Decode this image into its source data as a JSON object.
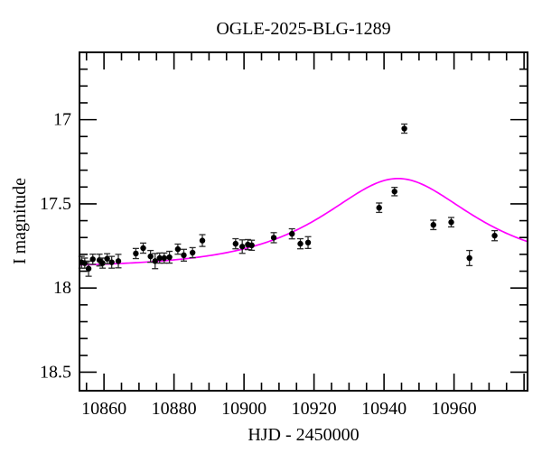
{
  "chart_data": {
    "type": "scatter",
    "title": "OGLE-2025-BLG-1289",
    "xlabel": "HJD - 2450000",
    "ylabel": "I magnitude",
    "x_range": [
      10853,
      10981
    ],
    "y_range_mag": [
      16.6,
      18.61
    ],
    "y_axis_inverted": true,
    "grid": false,
    "legend": false,
    "x_major_ticks": [
      10860,
      10880,
      10900,
      10920,
      10940,
      10960
    ],
    "x_minor_step": 5,
    "y_major_ticks": [
      17,
      17.5,
      18,
      18.5
    ],
    "y_minor_step": 0.1,
    "colors": {
      "model_curve": "#ff00ff",
      "data_points": "#000000",
      "error_bars": "#2b2b2b",
      "frame": "#000000",
      "background": "#ffffff"
    },
    "model_curve": {
      "type": "paczynski_microlensing",
      "t0": 10944.0,
      "tE": 30.5,
      "u0": 0.73,
      "baseline_mag": 17.88,
      "peak_mag": 17.35
    },
    "points": [
      {
        "t": 10853.6,
        "mag": 17.847,
        "err": 0.035
      },
      {
        "t": 10854.5,
        "mag": 17.852,
        "err": 0.03
      },
      {
        "t": 10855.6,
        "mag": 17.885,
        "err": 0.045
      },
      {
        "t": 10856.8,
        "mag": 17.829,
        "err": 0.03
      },
      {
        "t": 10858.7,
        "mag": 17.834,
        "err": 0.035
      },
      {
        "t": 10859.6,
        "mag": 17.852,
        "err": 0.03
      },
      {
        "t": 10860.9,
        "mag": 17.826,
        "err": 0.03
      },
      {
        "t": 10862.2,
        "mag": 17.847,
        "err": 0.035
      },
      {
        "t": 10864.1,
        "mag": 17.84,
        "err": 0.04
      },
      {
        "t": 10869.1,
        "mag": 17.795,
        "err": 0.03
      },
      {
        "t": 10871.2,
        "mag": 17.763,
        "err": 0.03
      },
      {
        "t": 10873.3,
        "mag": 17.812,
        "err": 0.035
      },
      {
        "t": 10874.6,
        "mag": 17.84,
        "err": 0.045
      },
      {
        "t": 10875.9,
        "mag": 17.822,
        "err": 0.03
      },
      {
        "t": 10877.2,
        "mag": 17.822,
        "err": 0.03
      },
      {
        "t": 10878.7,
        "mag": 17.817,
        "err": 0.035
      },
      {
        "t": 10881.1,
        "mag": 17.769,
        "err": 0.03
      },
      {
        "t": 10882.8,
        "mag": 17.805,
        "err": 0.035
      },
      {
        "t": 10885.3,
        "mag": 17.79,
        "err": 0.03
      },
      {
        "t": 10888.1,
        "mag": 17.718,
        "err": 0.035
      },
      {
        "t": 10897.6,
        "mag": 17.737,
        "err": 0.03
      },
      {
        "t": 10899.5,
        "mag": 17.754,
        "err": 0.04
      },
      {
        "t": 10901.1,
        "mag": 17.742,
        "err": 0.03
      },
      {
        "t": 10902.2,
        "mag": 17.746,
        "err": 0.03
      },
      {
        "t": 10908.5,
        "mag": 17.701,
        "err": 0.03
      },
      {
        "t": 10913.7,
        "mag": 17.678,
        "err": 0.03
      },
      {
        "t": 10916.1,
        "mag": 17.737,
        "err": 0.03
      },
      {
        "t": 10918.3,
        "mag": 17.73,
        "err": 0.035
      },
      {
        "t": 10938.6,
        "mag": 17.523,
        "err": 0.028
      },
      {
        "t": 10943.0,
        "mag": 17.427,
        "err": 0.025
      },
      {
        "t": 10945.8,
        "mag": 17.053,
        "err": 0.027
      },
      {
        "t": 10954.1,
        "mag": 17.625,
        "err": 0.028
      },
      {
        "t": 10959.2,
        "mag": 17.609,
        "err": 0.028
      },
      {
        "t": 10964.4,
        "mag": 17.822,
        "err": 0.045
      },
      {
        "t": 10971.6,
        "mag": 17.689,
        "err": 0.03
      }
    ]
  }
}
